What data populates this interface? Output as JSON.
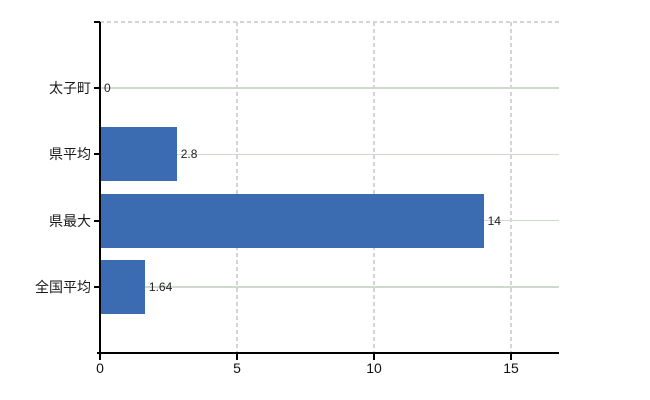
{
  "chart_data": {
    "type": "bar",
    "orientation": "horizontal",
    "title": "",
    "xlabel": "",
    "ylabel": "",
    "categories": [
      "太子町",
      "県平均",
      "県最大",
      "全国平均"
    ],
    "values": [
      0,
      2.8,
      14,
      1.64
    ],
    "value_labels": [
      "0",
      "2.8",
      "14",
      "1.64"
    ],
    "x_ticks": [
      0,
      5,
      10,
      15
    ],
    "x_tick_labels": [
      "0",
      "5",
      "10",
      "15"
    ],
    "xlim": [
      0,
      16.8
    ],
    "grid_horizontal": "on",
    "grid_vertical": "on",
    "legend_position": "none",
    "colors": {
      "bar": "#3b6cb1",
      "h_gridline": "#cfd9cd",
      "v_gridline": "#d8d2d8",
      "top_border": "#d8d2d8",
      "axis": "#000000",
      "text": "#1a1a1a"
    }
  }
}
